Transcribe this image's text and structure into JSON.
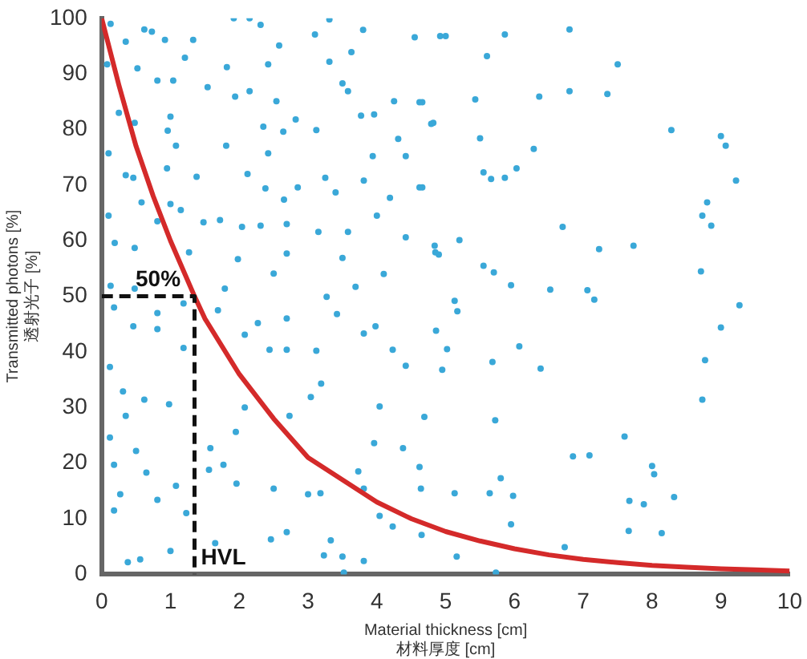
{
  "chart_data": {
    "type": "scatter",
    "xlabel": "Material thickness [cm]\n材料厚度 [cm]",
    "ylabel": "Transmitted photons [%]\n透射光子 [%]",
    "xlim": [
      0,
      10
    ],
    "ylim": [
      0,
      100
    ],
    "xticks": [
      0,
      1,
      2,
      3,
      4,
      5,
      6,
      7,
      8,
      9,
      10
    ],
    "yticks": [
      0,
      10,
      20,
      30,
      40,
      50,
      60,
      70,
      80,
      90,
      100
    ],
    "grid": false,
    "legend": false,
    "annotations": [
      {
        "text": "50%",
        "x": 0.4,
        "y": 50
      },
      {
        "text": "HVL",
        "x": 1.35,
        "y": 0
      }
    ],
    "series": [
      {
        "color": "#3aa8d8",
        "marker": "circle",
        "x": [
          5.0,
          5.86,
          6.8,
          5.6,
          7.5,
          6.8,
          7.35,
          6.36,
          5.43,
          4.66,
          4.82,
          8.28,
          9.0,
          9.07,
          6.28,
          5.5,
          6.03,
          5.55,
          5.86,
          5.66,
          9.22,
          4.66,
          8.8,
          8.73,
          8.86,
          6.7,
          7.23,
          7.73,
          5.2,
          4.84,
          4.9,
          5.55,
          5.7,
          5.95,
          6.52,
          7.06,
          7.16,
          8.71,
          5.13,
          5.17,
          9.27,
          4.86,
          9.0,
          5.02,
          6.07,
          5.68,
          6.38,
          4.95,
          8.77,
          8.73,
          5.72,
          4.69,
          7.6,
          6.85,
          7.09,
          5.8,
          5.13,
          5.64,
          5.98,
          7.67,
          7.88,
          8.0,
          8.03,
          8.32,
          5.95,
          7.66,
          8.14,
          5.16,
          6.73,
          5.73,
          0.13,
          0.62,
          0.73,
          0.35,
          0.92,
          1.33,
          1.92,
          2.15,
          2.31,
          2.58,
          3.1,
          3.31,
          3.8,
          4.55,
          4.92,
          1.21,
          0.08,
          0.52,
          0.81,
          1.04,
          1.54,
          1.82,
          1.94,
          2.15,
          2.42,
          2.54,
          3.31,
          3.5,
          3.58,
          3.63,
          4.25,
          4.62,
          0.25,
          0.48,
          1.0,
          0.96,
          1.08,
          1.81,
          2.35,
          2.64,
          2.82,
          3.12,
          3.77,
          3.96,
          4.31,
          4.42,
          4.79,
          0.1,
          0.35,
          0.46,
          0.58,
          0.95,
          1.38,
          2.12,
          2.42,
          2.38,
          2.65,
          2.85,
          3.25,
          3.4,
          3.81,
          3.94,
          4.19,
          4.62,
          1.0,
          1.15,
          0.81,
          0.1,
          0.19,
          0.48,
          1.48,
          1.72,
          2.04,
          2.31,
          2.69,
          3.15,
          3.58,
          4.0,
          4.42,
          4.85,
          1.27,
          1.98,
          2.5,
          2.69,
          3.5,
          3.69,
          3.27,
          4.1,
          0.13,
          0.18,
          0.48,
          0.81,
          1.19,
          1.69,
          1.79,
          2.08,
          2.27,
          2.44,
          2.69,
          2.69,
          3.12,
          3.42,
          3.81,
          3.98,
          4.23,
          4.42,
          0.46,
          0.81,
          1.19,
          0.12,
          0.31,
          0.62,
          0.98,
          0.35,
          0.12,
          0.5,
          0.18,
          0.65,
          0.27,
          0.18,
          0.81,
          1.08,
          1.23,
          0.38,
          0.56,
          1.0,
          1.65,
          1.56,
          1.58,
          1.77,
          2.08,
          2.5,
          2.46,
          2.69,
          3.0,
          3.18,
          3.33,
          3.23,
          3.5,
          3.81,
          3.52,
          3.73,
          3.81,
          4.04,
          4.23,
          3.96,
          4.38,
          4.62,
          4.64,
          4.65,
          4.04,
          3.19,
          3.04,
          2.73,
          1.95,
          1.96
        ],
        "values": [
          96.8,
          97.1,
          98,
          93.2,
          91.7,
          86.9,
          86.4,
          85.9,
          85.4,
          84.9,
          81.2,
          79.9,
          78.8,
          77.1,
          76.5,
          78.4,
          73,
          72.3,
          71.3,
          71.1,
          70.8,
          69.6,
          66.9,
          64.5,
          62.7,
          62.5,
          58.5,
          59.1,
          60.1,
          59.1,
          57.5,
          55.5,
          54.3,
          52,
          51.2,
          51.1,
          49.4,
          54.5,
          49.2,
          47.3,
          48.4,
          43.8,
          44.4,
          40.5,
          41,
          38.2,
          37,
          36.8,
          38.5,
          31.4,
          27.7,
          28.3,
          24.8,
          21.2,
          21.4,
          17.3,
          14.6,
          14.6,
          14.1,
          13.2,
          12.6,
          19.5,
          18,
          13.9,
          9,
          7.8,
          7.4,
          3.2,
          4.9,
          0.3,
          99,
          98,
          97.6,
          95.8,
          96.1,
          96.1,
          100,
          100,
          98.8,
          95.1,
          97.1,
          99.8,
          97.9,
          96.6,
          96.8,
          92.9,
          91.7,
          91,
          88.8,
          88.8,
          87.6,
          91.2,
          85.9,
          86.9,
          91.7,
          85.1,
          92.2,
          88.3,
          86.9,
          93.9,
          85.1,
          84.9,
          83,
          81.2,
          82.3,
          79.8,
          77.1,
          77.1,
          80.5,
          79.6,
          81.8,
          79.9,
          82.5,
          82.7,
          78.3,
          75.2,
          81,
          75.7,
          71.8,
          71.3,
          66.9,
          73,
          71.5,
          72,
          75.7,
          69.4,
          67.4,
          69.6,
          71.3,
          68.7,
          70.8,
          75.2,
          67.7,
          69.6,
          66.6,
          65.5,
          63.5,
          64.5,
          59.6,
          58.7,
          63.3,
          63.7,
          62.5,
          62.7,
          63,
          61.6,
          61.6,
          64.5,
          60.6,
          57.9,
          57.9,
          56.7,
          54.1,
          57.7,
          56.9,
          51.7,
          49.9,
          54,
          51.9,
          48,
          51.4,
          47,
          48.7,
          47.5,
          51.4,
          43.1,
          45.2,
          40.4,
          46,
          40.4,
          40.2,
          46.8,
          43.3,
          44.6,
          40.4,
          37.5,
          44.6,
          44.1,
          40.7,
          37.3,
          32.9,
          31.4,
          30.6,
          28.5,
          24.6,
          22.2,
          19.7,
          18.3,
          14.4,
          11.5,
          13.4,
          15.9,
          11,
          2.2,
          2.7,
          4.2,
          5.6,
          18.8,
          22.7,
          19.7,
          30,
          15.4,
          6.3,
          7.6,
          14.4,
          14.6,
          6.1,
          3.4,
          3.2,
          2.4,
          0.3,
          18.5,
          15.4,
          10.5,
          8.6,
          23.6,
          22.7,
          19.3,
          15.4,
          7.1,
          30.2,
          34.3,
          31.9,
          28.5,
          25.6,
          16.3
        ]
      },
      {
        "type": "line",
        "color": "#d42a2a",
        "marker": "none",
        "line_style": "solid",
        "x": [
          0,
          0.25,
          0.5,
          0.75,
          1,
          1.35,
          1.5,
          2,
          2.5,
          3,
          3.5,
          4,
          4.5,
          5,
          5.5,
          6,
          6.5,
          7,
          7.5,
          8,
          8.5,
          9,
          9.5,
          10
        ],
        "values": [
          100,
          88,
          77,
          68,
          60,
          50,
          46,
          36,
          28,
          21,
          17,
          13,
          10,
          7.7,
          6,
          4.6,
          3.5,
          2.7,
          2.1,
          1.6,
          1.3,
          1,
          0.8,
          0.6
        ]
      },
      {
        "type": "line",
        "color": "#111111",
        "marker": "none",
        "line_style": "dashed",
        "x": [
          0,
          1.35,
          1.35
        ],
        "values": [
          50,
          50,
          0
        ]
      }
    ]
  }
}
